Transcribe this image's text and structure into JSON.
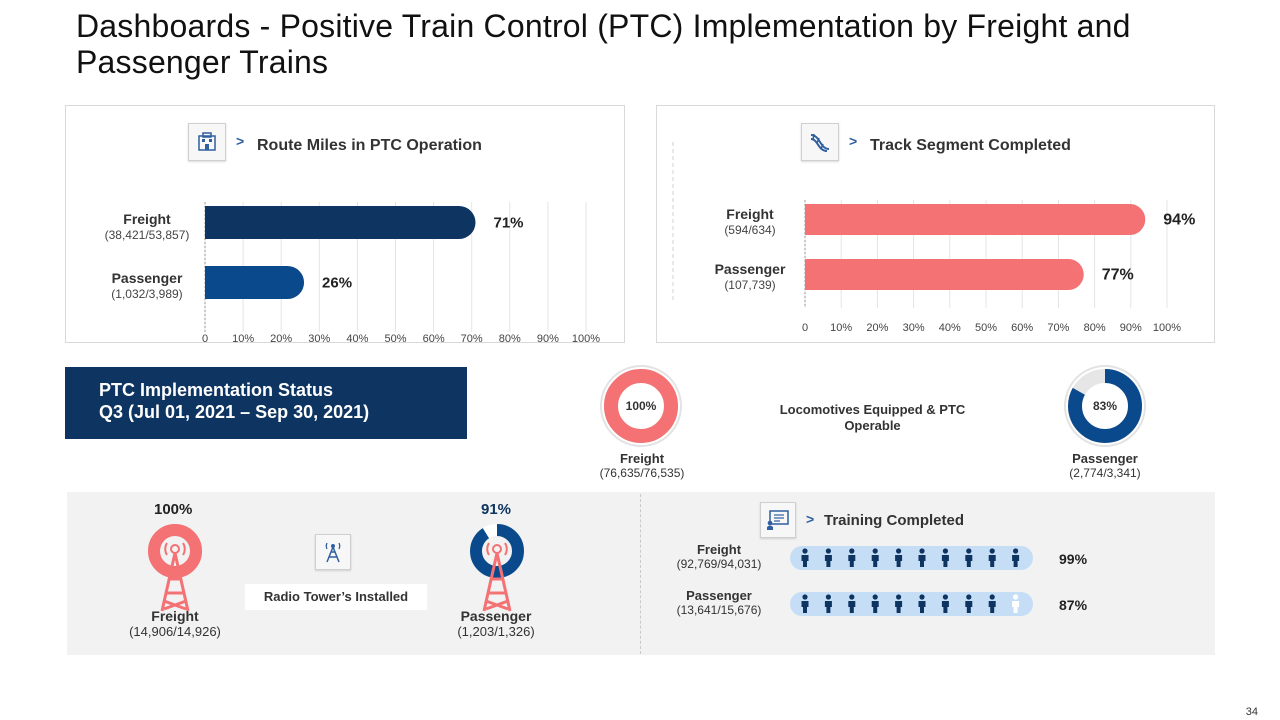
{
  "title": "Dashboards - Positive Train Control (PTC) Implementation by Freight and Passenger Trains",
  "colors": {
    "navy": "#0e3461",
    "blue": "#0a4a8c",
    "coral": "#f47174",
    "light_blue": "#c6ddf6",
    "grey_band": "#f2f2f2"
  },
  "chart_data": [
    {
      "type": "bar",
      "orientation": "horizontal",
      "title": "Route Miles in PTC Operation",
      "icon": "building-icon",
      "categories": [
        "Freight",
        "Passenger"
      ],
      "details": [
        "(38,421/53,857)",
        "(1,032/3,989)"
      ],
      "values": [
        71,
        26
      ],
      "value_labels": [
        "71%",
        "26%"
      ],
      "colors": [
        "#0e3461",
        "#0a4a8c"
      ],
      "xlim": [
        0,
        100
      ],
      "ticks": [
        "0",
        "10%",
        "20%",
        "30%",
        "40%",
        "50%",
        "60%",
        "70%",
        "80%",
        "90%",
        "100%"
      ]
    },
    {
      "type": "bar",
      "orientation": "horizontal",
      "title": "Track Segment Completed",
      "icon": "track-icon",
      "categories": [
        "Freight",
        "Passenger"
      ],
      "details": [
        "(594/634)",
        "(107,739)"
      ],
      "values": [
        94,
        77
      ],
      "value_labels": [
        "94%",
        "77%"
      ],
      "colors": [
        "#f47174",
        "#f47174"
      ],
      "xlim": [
        0,
        100
      ],
      "ticks": [
        "0",
        "10%",
        "20%",
        "30%",
        "40%",
        "50%",
        "60%",
        "70%",
        "80%",
        "90%",
        "100%"
      ]
    }
  ],
  "status": {
    "line1": "PTC Implementation Status",
    "line2": "Q3 (Jul 01, 2021 – Sep 30, 2021)"
  },
  "locomotives": {
    "label": "Locomotives Equipped & PTC Operable",
    "freight": {
      "name": "Freight",
      "detail": "(76,635/76,535)",
      "value": 100,
      "label": "100%"
    },
    "passenger": {
      "name": "Passenger",
      "detail": "(2,774/3,341)",
      "value": 83,
      "label": "83%"
    }
  },
  "radio_towers": {
    "label": "Radio Tower’s Installed",
    "icon": "radio-tower-icon",
    "freight": {
      "name": "Freight",
      "detail": "(14,906/14,926)",
      "value": 100,
      "label": "100%"
    },
    "passenger": {
      "name": "Passenger",
      "detail": "(1,203/1,326)",
      "value": 91,
      "label": "91%"
    }
  },
  "training": {
    "title": "Training Completed",
    "icon": "training-icon",
    "people_count": 10,
    "freight": {
      "name": "Freight",
      "detail": "(92,769/94,031)",
      "value": 99,
      "label": "99%",
      "filled_people": 10
    },
    "passenger": {
      "name": "Passenger",
      "detail": "(13,641/15,676)",
      "value": 87,
      "label": "87%",
      "filled_people": 9
    }
  },
  "page_number": "34"
}
